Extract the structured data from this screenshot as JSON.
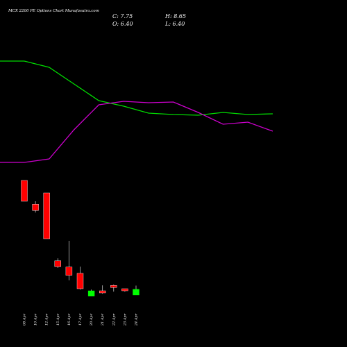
{
  "chart_data": {
    "type": "candlestick",
    "title": "MCX 2200 PE Options Chart Munafasutra.com",
    "ohlc_text": [
      "C: 7.75",
      "H: 8.65",
      "O: 6.40",
      "L: 6.40"
    ],
    "categories": [
      "08 Apr",
      "10 Apr",
      "12 Apr",
      "15 Apr",
      "16 Apr",
      "17 Apr",
      "20 Apr",
      "21 Apr",
      "22 Apr",
      "23 Apr",
      "24 Apr"
    ],
    "open": [
      33.9,
      28.2,
      30.9,
      14.6,
      13.1,
      11.6,
      6.1,
      7.4,
      8.7,
      7.9,
      6.4
    ],
    "high": [
      33.9,
      28.9,
      30.9,
      15.2,
      19.4,
      13.2,
      7.7,
      8.7,
      8.9,
      7.9,
      8.65
    ],
    "low": [
      28.9,
      26.2,
      19.9,
      12.9,
      9.9,
      7.7,
      6.1,
      6.7,
      7.2,
      7.2,
      6.4
    ],
    "close": [
      28.9,
      26.7,
      19.9,
      13.2,
      11.1,
      7.9,
      7.4,
      6.9,
      8.2,
      7.4,
      7.75
    ],
    "up_color": "#00ff00",
    "down_color": "#ff0000",
    "series": [
      {
        "color": "#00dd00",
        "values": [
          162,
          153,
          129,
          105,
          97,
          87,
          85,
          84,
          88,
          85,
          86
        ]
      },
      {
        "color": "#cc00cc",
        "values": [
          16,
          21,
          63,
          99,
          104,
          102,
          103,
          88,
          71,
          74,
          61
        ]
      }
    ]
  }
}
